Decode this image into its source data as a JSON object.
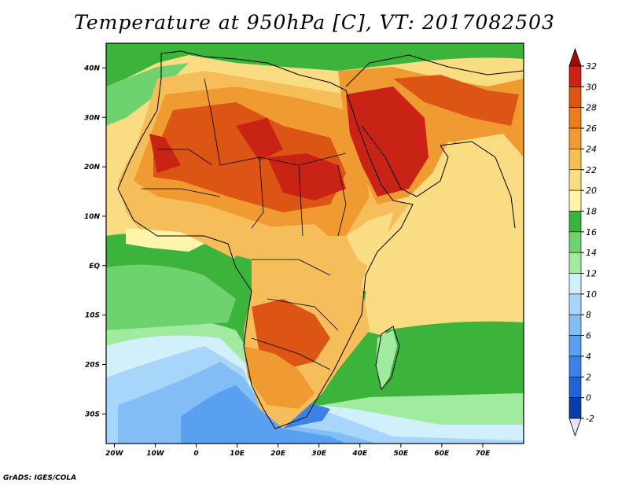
{
  "title": "Temperature at 950hPa [C], VT: 2017082503",
  "credit": "GrADS: IGES/COLA",
  "map": {
    "lon_range": [
      -22,
      80
    ],
    "lat_range": [
      -36,
      45
    ],
    "x_ticks": [
      {
        "v": -20,
        "label": "20W"
      },
      {
        "v": -10,
        "label": "10W"
      },
      {
        "v": 0,
        "label": "0"
      },
      {
        "v": 10,
        "label": "10E"
      },
      {
        "v": 20,
        "label": "20E"
      },
      {
        "v": 30,
        "label": "30E"
      },
      {
        "v": 40,
        "label": "40E"
      },
      {
        "v": 50,
        "label": "50E"
      },
      {
        "v": 60,
        "label": "60E"
      },
      {
        "v": 70,
        "label": "70E"
      }
    ],
    "y_ticks": [
      {
        "v": 40,
        "label": "40N"
      },
      {
        "v": 30,
        "label": "30N"
      },
      {
        "v": 20,
        "label": "20N"
      },
      {
        "v": 10,
        "label": "10N"
      },
      {
        "v": 0,
        "label": "EQ"
      },
      {
        "v": -10,
        "label": "10S"
      },
      {
        "v": -20,
        "label": "20S"
      },
      {
        "v": -30,
        "label": "30S"
      }
    ]
  },
  "colorbar": {
    "levels": [
      "-2",
      "0",
      "2",
      "4",
      "6",
      "8",
      "10",
      "12",
      "14",
      "16",
      "18",
      "20",
      "22",
      "24",
      "26",
      "28",
      "30",
      "32"
    ],
    "colors": [
      "#1a1a8c",
      "#0a3caa",
      "#1e64d2",
      "#3c82e6",
      "#5aa0f0",
      "#82bef5",
      "#a8d6fa",
      "#d2f0fc",
      "#a0eba0",
      "#6ed26e",
      "#3cb43c",
      "#fff5aa",
      "#fadc82",
      "#f5be5a",
      "#f09b32",
      "#eb7d1e",
      "#dc5514",
      "#c82314",
      "#a00a0a"
    ]
  }
}
